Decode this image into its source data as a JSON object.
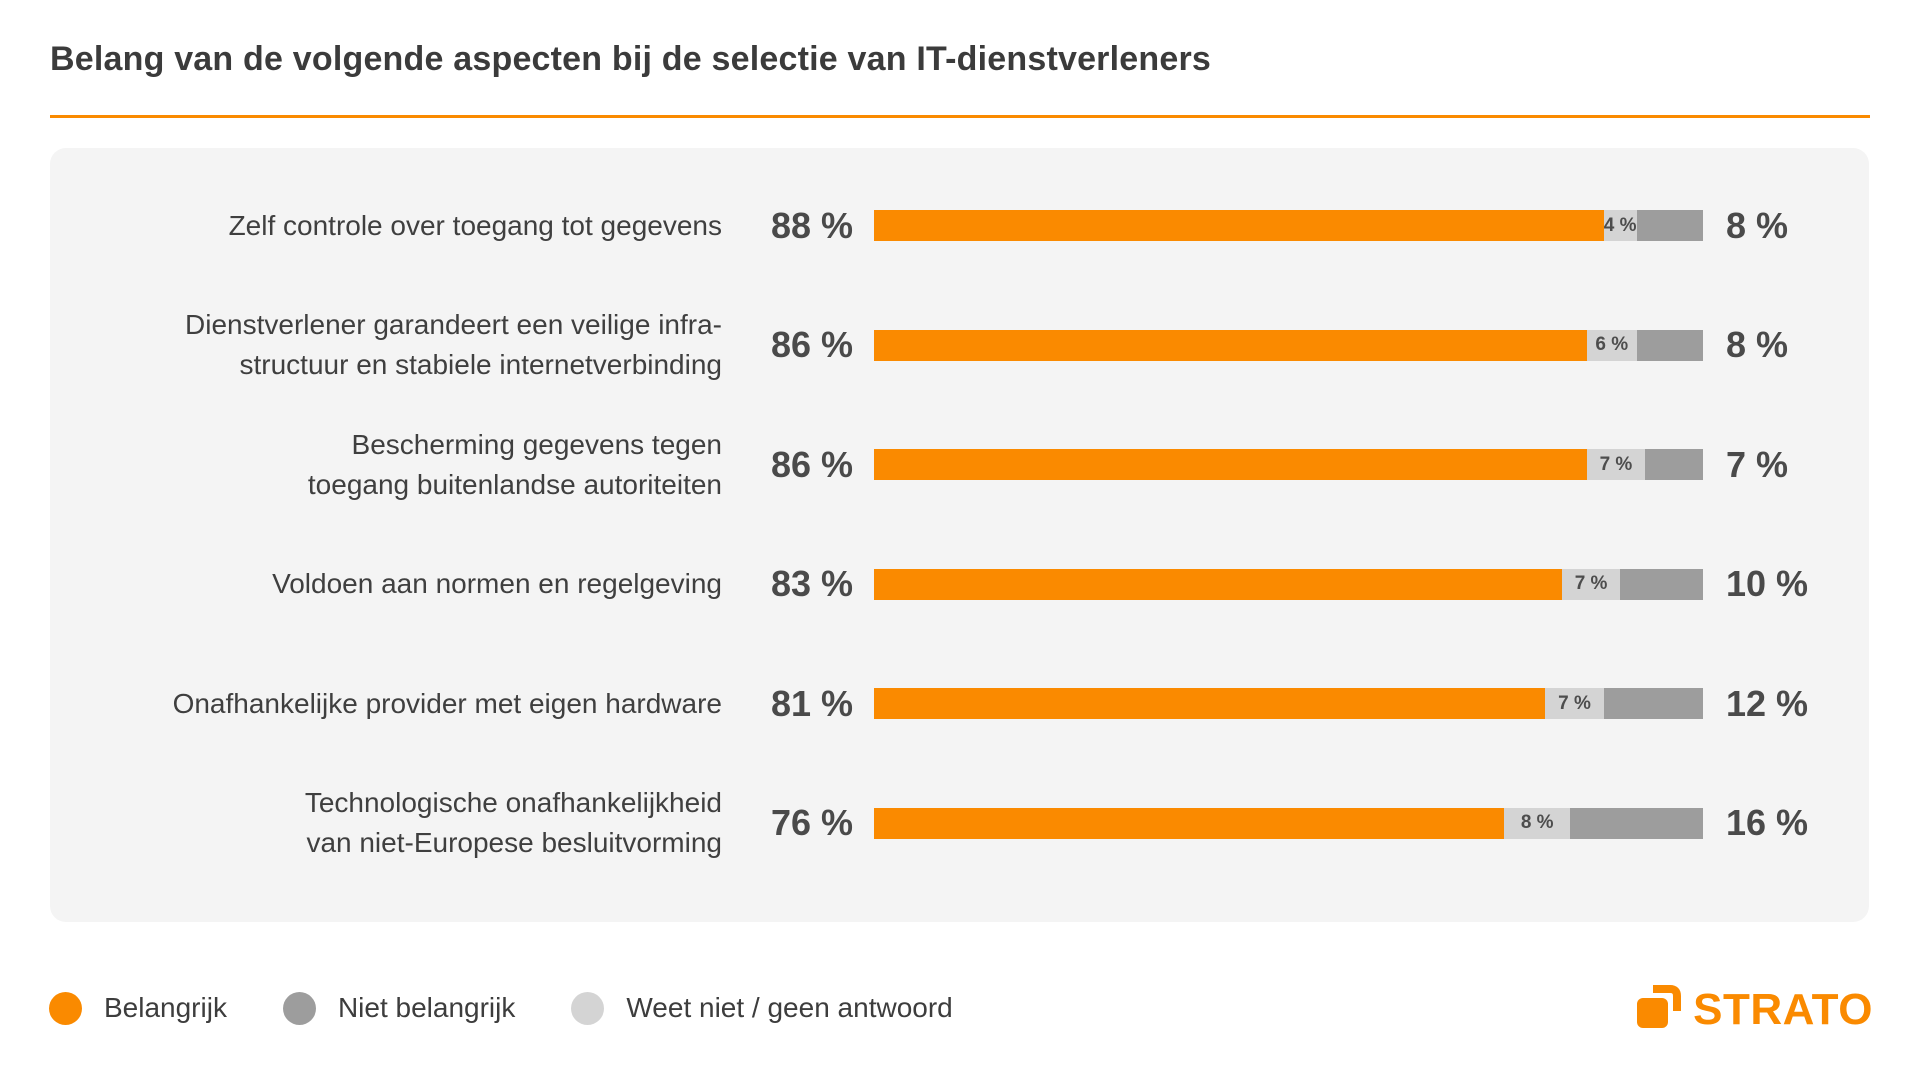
{
  "title": "Belang van de volgende aspecten bij de selectie van IT-dienstverleners",
  "colors": {
    "belangrijk": "#FA8A00",
    "niet_belangrijk": "#9D9D9D",
    "weet_niet": "#D4D4D4",
    "panel_bg": "#F4F4F4",
    "accent_rule": "#FA8A00",
    "text": "#3B3B3B"
  },
  "rows": [
    {
      "label": [
        "Zelf controle over toegang tot gegevens"
      ],
      "belangrijk": 88,
      "weet_niet": 4,
      "niet_belangrijk": 8,
      "belangrijk_label": "88 %",
      "weet_niet_label": "4 %",
      "niet_belangrijk_label": "8 %"
    },
    {
      "label": [
        "Dienstverlener garandeert een veilige infra-",
        "structuur en stabiele internetverbinding"
      ],
      "belangrijk": 86,
      "weet_niet": 6,
      "niet_belangrijk": 8,
      "belangrijk_label": "86 %",
      "weet_niet_label": "6 %",
      "niet_belangrijk_label": "8 %"
    },
    {
      "label": [
        "Bescherming gegevens tegen",
        "toegang buitenlandse autoriteiten"
      ],
      "belangrijk": 86,
      "weet_niet": 7,
      "niet_belangrijk": 7,
      "belangrijk_label": "86 %",
      "weet_niet_label": "7 %",
      "niet_belangrijk_label": "7 %"
    },
    {
      "label": [
        "Voldoen aan normen en regelgeving"
      ],
      "belangrijk": 83,
      "weet_niet": 7,
      "niet_belangrijk": 10,
      "belangrijk_label": "83 %",
      "weet_niet_label": "7 %",
      "niet_belangrijk_label": "10 %"
    },
    {
      "label": [
        "Onafhankelijke provider met eigen hardware"
      ],
      "belangrijk": 81,
      "weet_niet": 7,
      "niet_belangrijk": 12,
      "belangrijk_label": "81 %",
      "weet_niet_label": "7 %",
      "niet_belangrijk_label": "12 %"
    },
    {
      "label": [
        "Technologische onafhankelijkheid",
        "van niet-Europese besluitvorming"
      ],
      "belangrijk": 76,
      "weet_niet": 8,
      "niet_belangrijk": 16,
      "belangrijk_label": "76 %",
      "weet_niet_label": "8 %",
      "niet_belangrijk_label": "16 %"
    }
  ],
  "legend": [
    {
      "label": "Belangrijk",
      "color": "#FA8A00"
    },
    {
      "label": "Niet belangrijk",
      "color": "#9D9D9D"
    },
    {
      "label": "Weet niet / geen antwoord",
      "color": "#D4D4D4"
    }
  ],
  "logo": {
    "text": "STRATO",
    "color": "#FA8A00"
  },
  "chart_data": {
    "type": "bar",
    "orientation": "horizontal_stacked",
    "title": "Belang van de volgende aspecten bij de selectie van IT-dienstverleners",
    "categories": [
      "Zelf controle over toegang tot gegevens",
      "Dienstverlener garandeert een veilige infrastructuur en stabiele internetverbinding",
      "Bescherming gegevens tegen toegang buitenlandse autoriteiten",
      "Voldoen aan normen en regelgeving",
      "Onafhankelijke provider met eigen hardware",
      "Technologische onafhankelijkheid van niet-Europese besluitvorming"
    ],
    "series": [
      {
        "name": "Belangrijk",
        "color": "#FA8A00",
        "values": [
          88,
          86,
          86,
          83,
          81,
          76
        ]
      },
      {
        "name": "Weet niet / geen antwoord",
        "color": "#D4D4D4",
        "values": [
          4,
          6,
          7,
          7,
          7,
          8
        ]
      },
      {
        "name": "Niet belangrijk",
        "color": "#9D9D9D",
        "values": [
          8,
          8,
          7,
          10,
          12,
          16
        ]
      }
    ],
    "value_suffix": " %",
    "xlim": [
      0,
      100
    ],
    "grid": false,
    "legend_position": "bottom",
    "legend_display_order": [
      "Belangrijk",
      "Niet belangrijk",
      "Weet niet / geen antwoord"
    ]
  }
}
